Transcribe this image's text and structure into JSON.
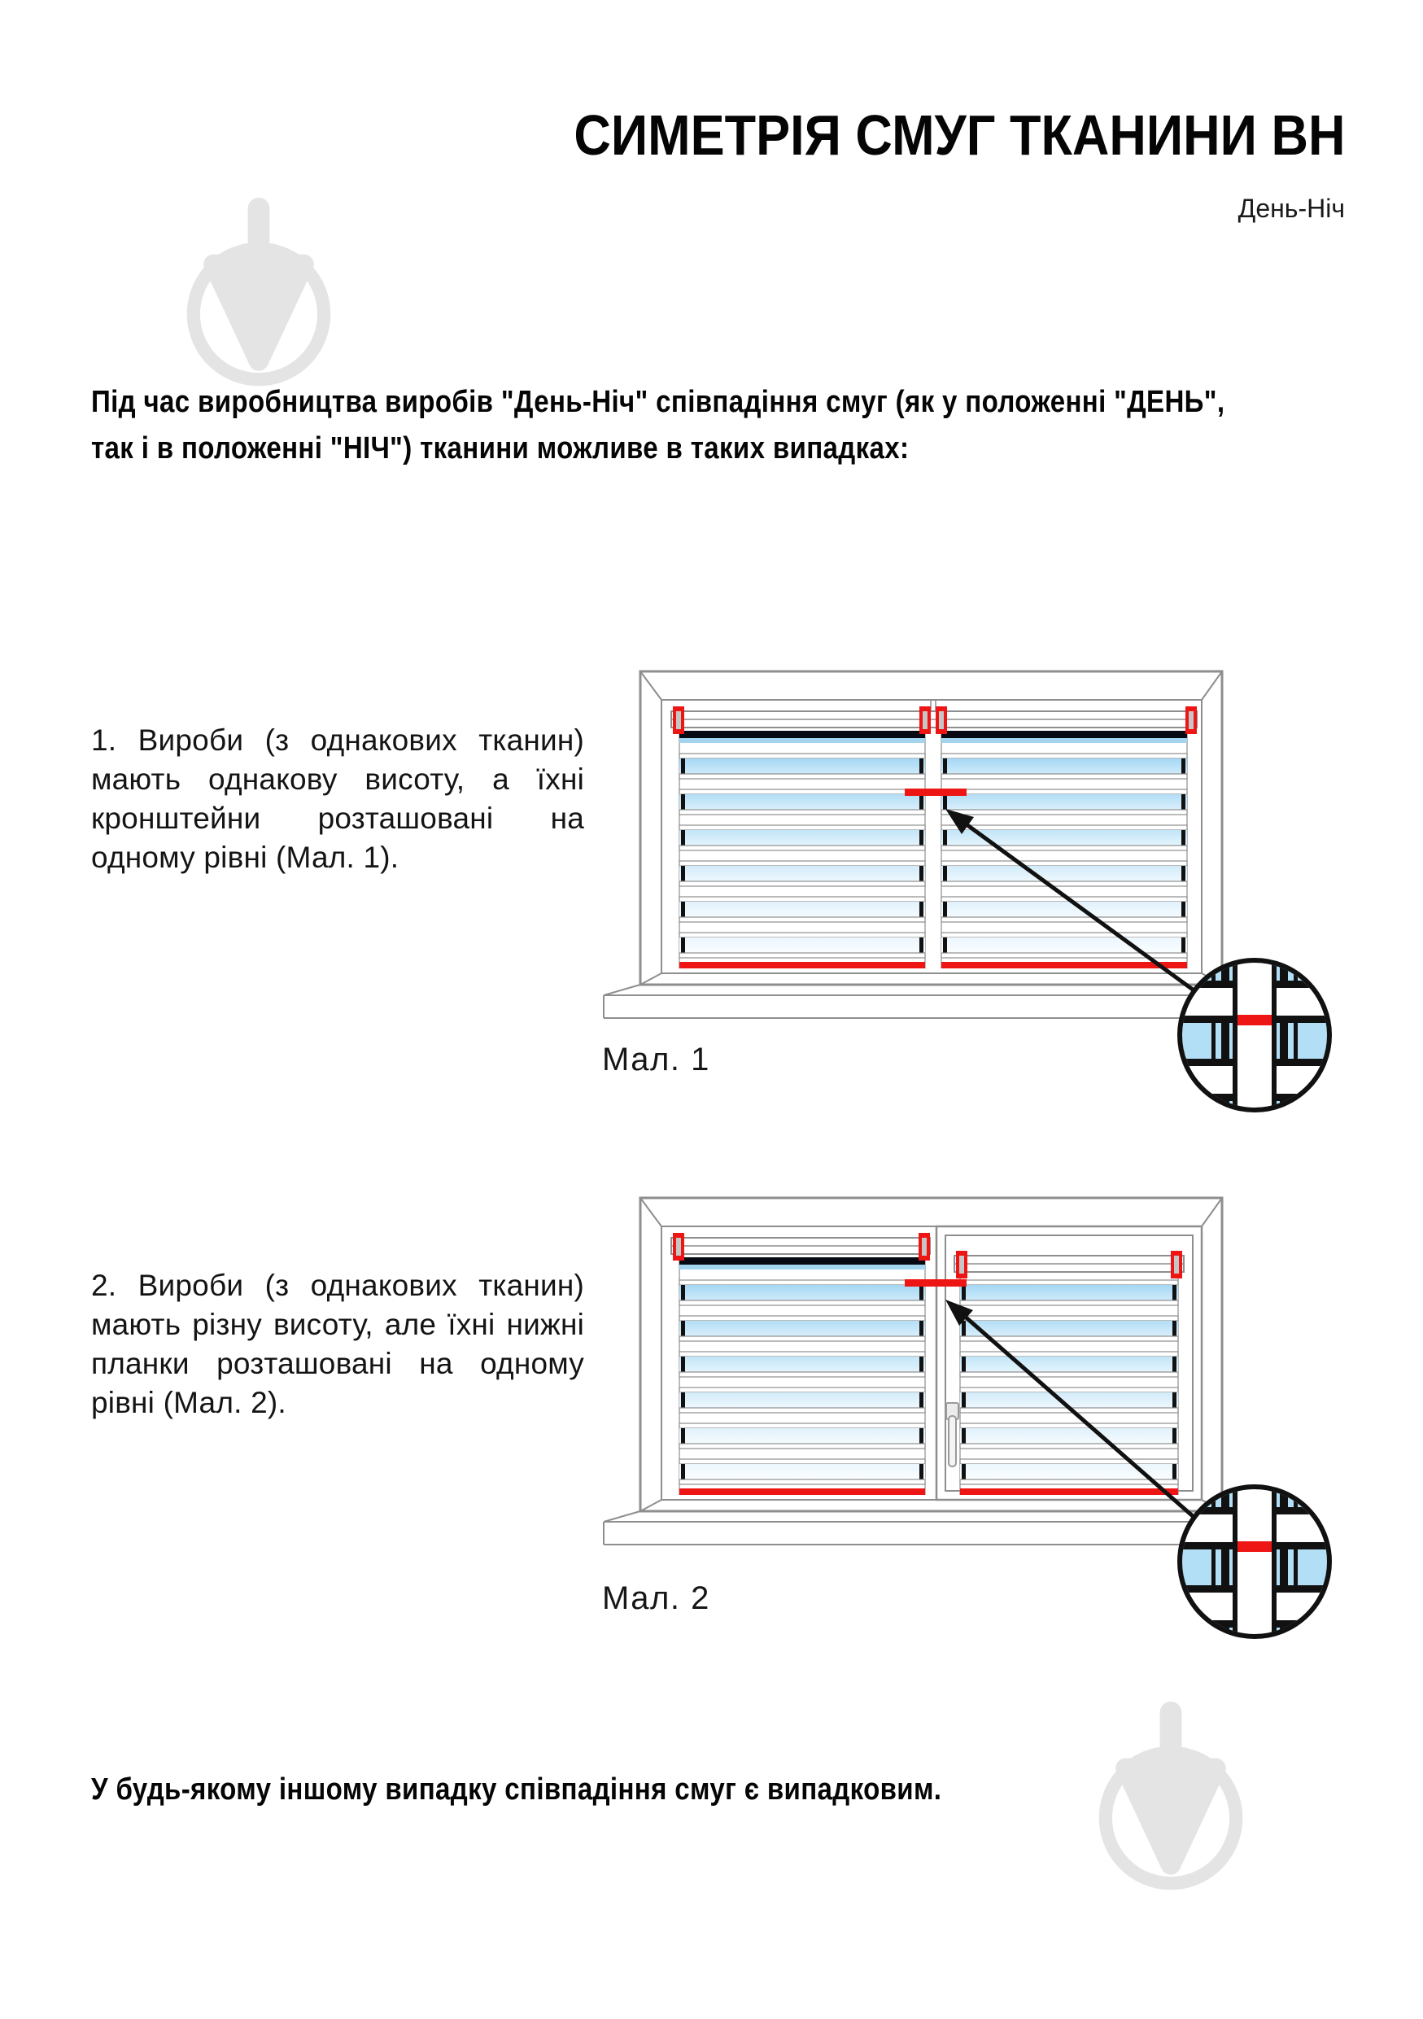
{
  "page": {
    "title": "СИМЕТРІЯ СМУГ ТКАНИНИ ВН",
    "subtitle": "День-Ніч",
    "intro": "Під час виробництва виробів \"День-Ніч\" співпадіння смуг (як у положенні \"ДЕНЬ\",\nтак і в положенні \"НІЧ\") тканини можливе в таких випадках:",
    "footer": "У будь-якому іншому випадку співпадіння смуг є випадковим."
  },
  "items": [
    {
      "text": "1. Вироби (з однакових тканин) мають однакову висоту, а їхні кронштейни розташовані на одному рівні (Мал. 1).",
      "caption": "Мал. 1"
    },
    {
      "text": "2. Вироби (з однакових тканин) мають різну висоту, але їхні нижні планки розташовані на одному рівні (Мал. 2).",
      "caption": "Мал. 2"
    }
  ],
  "colors": {
    "red": "#ee1515",
    "frame": "#8e8e8e",
    "black": "#111111",
    "dark_stripe": "#070a12",
    "dark_sliver": "#a3d5f1",
    "circle_blue": "#b2def6",
    "bracket_slot": "#c6c6c6",
    "watermark": "#e4e4e4",
    "stripe_tops": [
      "#a4d7f4",
      "#b3def6",
      "#c2e5f8",
      "#d2ebfa",
      "#e0f1fc",
      "#ebf6fd"
    ],
    "stripe_bottoms": [
      "#cfeafa",
      "#daeffb",
      "#e4f4fc",
      "#eef8fd",
      "#f5fbfe",
      "#fafdff"
    ]
  }
}
